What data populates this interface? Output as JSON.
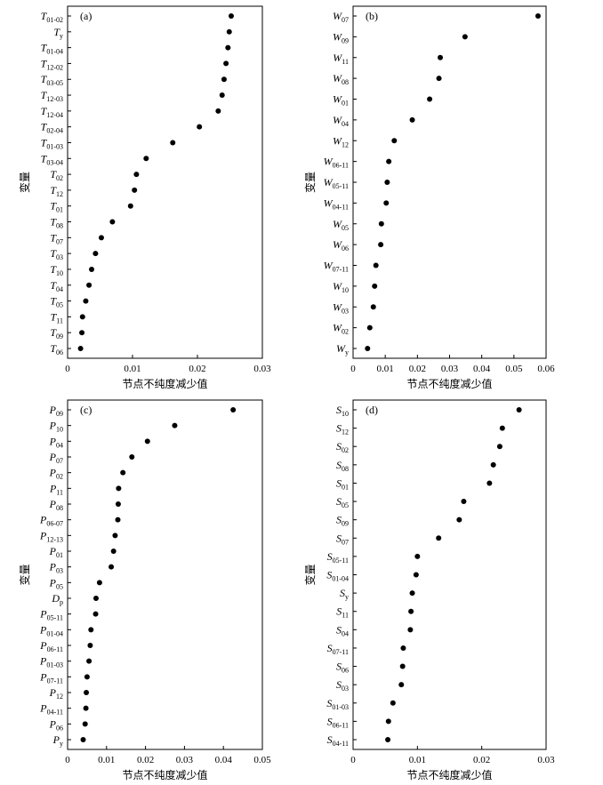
{
  "xlabel": "节点不纯度减少值",
  "ylabel": "变量",
  "chart_data": [
    {
      "type": "scatter",
      "panel": "(a)",
      "xlabel": "节点不纯度减少值",
      "ylabel": "变量",
      "xlim": [
        0,
        0.03
      ],
      "xticks": [
        "0",
        "0.01",
        "0.02",
        "0.03"
      ],
      "variables": [
        {
          "v": "T",
          "s": "01-02",
          "x": 0.0252
        },
        {
          "v": "T",
          "s": "y",
          "x": 0.0249
        },
        {
          "v": "T",
          "s": "01-04",
          "x": 0.0247
        },
        {
          "v": "T",
          "s": "12-02",
          "x": 0.0244
        },
        {
          "v": "T",
          "s": "03-05",
          "x": 0.0241
        },
        {
          "v": "T",
          "s": "12-03",
          "x": 0.0238
        },
        {
          "v": "T",
          "s": "12-04",
          "x": 0.0232
        },
        {
          "v": "T",
          "s": "02-04",
          "x": 0.0203
        },
        {
          "v": "T",
          "s": "01-03",
          "x": 0.0162
        },
        {
          "v": "T",
          "s": "03-04",
          "x": 0.0121
        },
        {
          "v": "T",
          "s": "02",
          "x": 0.0106
        },
        {
          "v": "T",
          "s": "12",
          "x": 0.0103
        },
        {
          "v": "T",
          "s": "01",
          "x": 0.0097
        },
        {
          "v": "T",
          "s": "08",
          "x": 0.0069
        },
        {
          "v": "T",
          "s": "07",
          "x": 0.0052
        },
        {
          "v": "T",
          "s": "03",
          "x": 0.0043
        },
        {
          "v": "T",
          "s": "10",
          "x": 0.0037
        },
        {
          "v": "T",
          "s": "04",
          "x": 0.0033
        },
        {
          "v": "T",
          "s": "05",
          "x": 0.0028
        },
        {
          "v": "T",
          "s": "11",
          "x": 0.0023
        },
        {
          "v": "T",
          "s": "09",
          "x": 0.0022
        },
        {
          "v": "T",
          "s": "06",
          "x": 0.002
        }
      ]
    },
    {
      "type": "scatter",
      "panel": "(b)",
      "xlabel": "节点不纯度减少值",
      "ylabel": "变量",
      "xlim": [
        0,
        0.06
      ],
      "xticks": [
        "0",
        "0.01",
        "0.02",
        "0.03",
        "0.04",
        "0.05",
        "0.06"
      ],
      "variables": [
        {
          "v": "W",
          "s": "07",
          "x": 0.0575
        },
        {
          "v": "W",
          "s": "09",
          "x": 0.0348
        },
        {
          "v": "W",
          "s": "11",
          "x": 0.0271
        },
        {
          "v": "W",
          "s": "08",
          "x": 0.0267
        },
        {
          "v": "W",
          "s": "01",
          "x": 0.0238
        },
        {
          "v": "W",
          "s": "04",
          "x": 0.0184
        },
        {
          "v": "W",
          "s": "12",
          "x": 0.0128
        },
        {
          "v": "W",
          "s": "06-11",
          "x": 0.0111
        },
        {
          "v": "W",
          "s": "05-11",
          "x": 0.0106
        },
        {
          "v": "W",
          "s": "04-11",
          "x": 0.0103
        },
        {
          "v": "W",
          "s": "05",
          "x": 0.0088
        },
        {
          "v": "W",
          "s": "06",
          "x": 0.0086
        },
        {
          "v": "W",
          "s": "07-11",
          "x": 0.0071
        },
        {
          "v": "W",
          "s": "10",
          "x": 0.0067
        },
        {
          "v": "W",
          "s": "03",
          "x": 0.0063
        },
        {
          "v": "W",
          "s": "02",
          "x": 0.0052
        },
        {
          "v": "W",
          "s": "y",
          "x": 0.0045
        }
      ]
    },
    {
      "type": "scatter",
      "panel": "(c)",
      "xlabel": "节点不纯度减少值",
      "ylabel": "变量",
      "xlim": [
        0,
        0.05
      ],
      "xticks": [
        "0",
        "0.01",
        "0.02",
        "0.03",
        "0.04",
        "0.05"
      ],
      "variables": [
        {
          "v": "P",
          "s": "09",
          "x": 0.0425
        },
        {
          "v": "P",
          "s": "10",
          "x": 0.0275
        },
        {
          "v": "P",
          "s": "04",
          "x": 0.0205
        },
        {
          "v": "P",
          "s": "07",
          "x": 0.0165
        },
        {
          "v": "P",
          "s": "02",
          "x": 0.0142
        },
        {
          "v": "P",
          "s": "11",
          "x": 0.0131
        },
        {
          "v": "P",
          "s": "08",
          "x": 0.013
        },
        {
          "v": "P",
          "s": "06-07",
          "x": 0.0129
        },
        {
          "v": "P",
          "s": "12-13",
          "x": 0.0122
        },
        {
          "v": "P",
          "s": "01",
          "x": 0.0118
        },
        {
          "v": "P",
          "s": "03",
          "x": 0.0112
        },
        {
          "v": "P",
          "s": "05",
          "x": 0.0082
        },
        {
          "v": "D",
          "s": "p",
          "x": 0.0073
        },
        {
          "v": "P",
          "s": "05-11",
          "x": 0.0072
        },
        {
          "v": "P",
          "s": "01-04",
          "x": 0.006
        },
        {
          "v": "P",
          "s": "06-11",
          "x": 0.0058
        },
        {
          "v": "P",
          "s": "01-03",
          "x": 0.0055
        },
        {
          "v": "P",
          "s": "07-11",
          "x": 0.005
        },
        {
          "v": "P",
          "s": "12",
          "x": 0.0048
        },
        {
          "v": "P",
          "s": "04-11",
          "x": 0.0047
        },
        {
          "v": "P",
          "s": "06",
          "x": 0.0045
        },
        {
          "v": "P",
          "s": "y",
          "x": 0.004
        }
      ]
    },
    {
      "type": "scatter",
      "panel": "(d)",
      "xlabel": "节点不纯度减少值",
      "ylabel": "变量",
      "xlim": [
        0,
        0.03
      ],
      "xticks": [
        "0",
        "0.01",
        "0.02",
        "0.03"
      ],
      "variables": [
        {
          "v": "S",
          "s": "10",
          "x": 0.0258
        },
        {
          "v": "S",
          "s": "12",
          "x": 0.0232
        },
        {
          "v": "S",
          "s": "02",
          "x": 0.0228
        },
        {
          "v": "S",
          "s": "08",
          "x": 0.0218
        },
        {
          "v": "S",
          "s": "01",
          "x": 0.0212
        },
        {
          "v": "S",
          "s": "05",
          "x": 0.0172
        },
        {
          "v": "S",
          "s": "09",
          "x": 0.0165
        },
        {
          "v": "S",
          "s": "07",
          "x": 0.0133
        },
        {
          "v": "S",
          "s": "05-11",
          "x": 0.01
        },
        {
          "v": "S",
          "s": "01-04",
          "x": 0.0098
        },
        {
          "v": "S",
          "s": "y",
          "x": 0.0092
        },
        {
          "v": "S",
          "s": "11",
          "x": 0.009
        },
        {
          "v": "S",
          "s": "04",
          "x": 0.0089
        },
        {
          "v": "S",
          "s": "07-11",
          "x": 0.0078
        },
        {
          "v": "S",
          "s": "06",
          "x": 0.0077
        },
        {
          "v": "S",
          "s": "03",
          "x": 0.0075
        },
        {
          "v": "S",
          "s": "01-03",
          "x": 0.0062
        },
        {
          "v": "S",
          "s": "06-11",
          "x": 0.0055
        },
        {
          "v": "S",
          "s": "04-11",
          "x": 0.0054
        }
      ]
    }
  ]
}
